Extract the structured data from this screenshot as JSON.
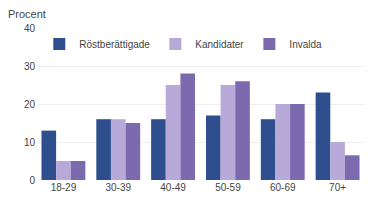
{
  "chart_data": {
    "type": "bar",
    "ylabel": "Procent",
    "categories": [
      "18-29",
      "30-39",
      "40-49",
      "50-59",
      "60-69",
      "70+"
    ],
    "series": [
      {
        "name": "Röstberättigade",
        "color": "#2E4E8E",
        "values": [
          13,
          16,
          16,
          17,
          16,
          23
        ]
      },
      {
        "name": "Kandidater",
        "color": "#B8AAD8",
        "values": [
          5,
          16,
          25,
          25,
          20,
          10
        ]
      },
      {
        "name": "Invalda",
        "color": "#7B6BAE",
        "values": [
          5,
          15,
          28,
          26,
          20,
          6.5
        ]
      }
    ],
    "ylim": [
      0,
      40
    ],
    "yticks": [
      0,
      10,
      20,
      30,
      40
    ],
    "grid": true,
    "legend": "upper left"
  }
}
